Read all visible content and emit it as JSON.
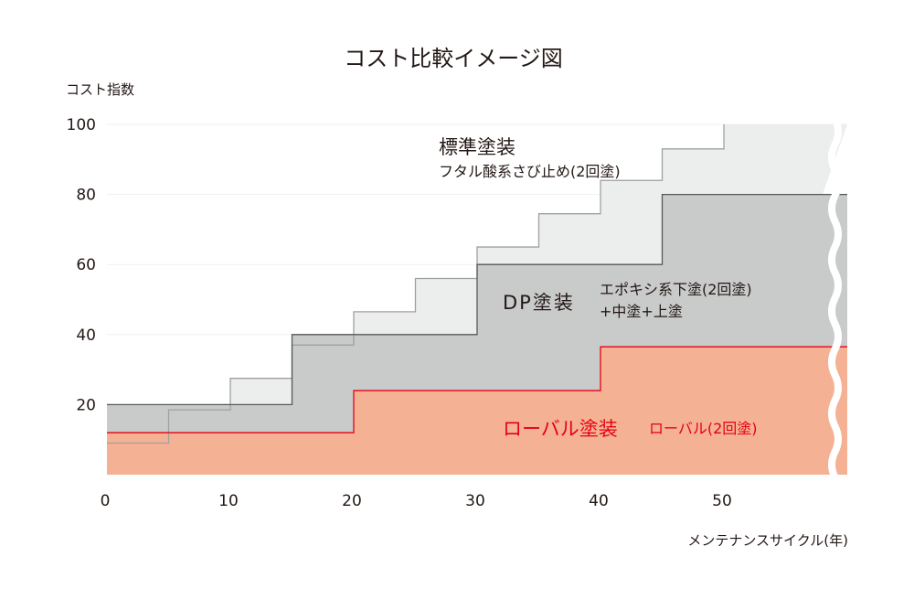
{
  "chart_data": {
    "type": "area",
    "title": "コスト比較イメージ図",
    "ylabel": "コスト指数",
    "xlabel": "メンテナンスサイクル(年)",
    "xlim": [
      0,
      60
    ],
    "ylim": [
      0,
      100
    ],
    "x_ticks": [
      0,
      10,
      20,
      30,
      40,
      50
    ],
    "y_ticks": [
      20,
      40,
      60,
      80,
      100
    ],
    "axis_break_at_x": 59,
    "grid": "horizontal",
    "series": [
      {
        "name": "標準塗装",
        "note": "フタル酸系さび止め(2回塗)",
        "color": "#eceded",
        "line_color": "#9fa0a0",
        "steps": [
          {
            "x": 0,
            "y": 9
          },
          {
            "x": 5,
            "y": 18.5
          },
          {
            "x": 10,
            "y": 27.5
          },
          {
            "x": 15,
            "y": 37
          },
          {
            "x": 20,
            "y": 46.5
          },
          {
            "x": 25,
            "y": 56
          },
          {
            "x": 30,
            "y": 65
          },
          {
            "x": 35,
            "y": 74.5
          },
          {
            "x": 40,
            "y": 84
          },
          {
            "x": 45,
            "y": 93
          },
          {
            "x": 50,
            "y": 100
          }
        ]
      },
      {
        "name": "DP塗装",
        "note_lines": [
          "エポキシ系下塗(2回塗)",
          "+中塗+上塗"
        ],
        "color": "#c9caca",
        "line_color": "#595757",
        "steps": [
          {
            "x": 0,
            "y": 20
          },
          {
            "x": 15,
            "y": 40
          },
          {
            "x": 30,
            "y": 60
          },
          {
            "x": 45,
            "y": 80
          }
        ]
      },
      {
        "name": "ローバル塗装",
        "note": "ローバル(2回塗)",
        "color": "#f4b193",
        "line_color": "#e60012",
        "text_color": "#e60012",
        "steps": [
          {
            "x": 0,
            "y": 12
          },
          {
            "x": 20,
            "y": 24
          },
          {
            "x": 40,
            "y": 36.5
          }
        ]
      }
    ]
  }
}
